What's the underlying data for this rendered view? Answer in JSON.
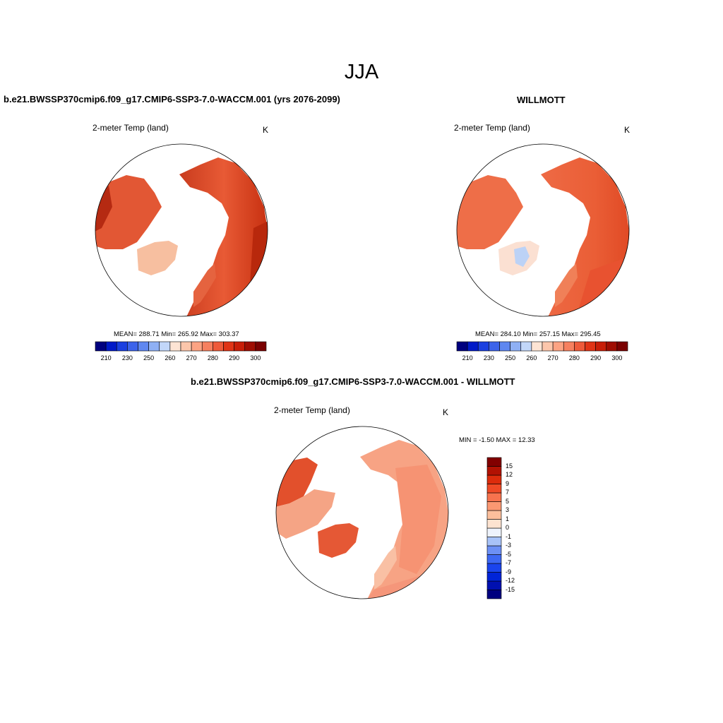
{
  "figure": {
    "title": "JJA"
  },
  "panels": {
    "model": {
      "title": "b.e21.BWSSP370cmip6.f09_g17.CMIP6-SSP3-7.0-WACCM.001 (yrs 2076-2099)",
      "subtitle": "2-meter Temp (land)",
      "units": "K",
      "stats": "MEAN= 288.71  Min= 265.92  Max= 303.37"
    },
    "obs": {
      "title": "WILLMOTT",
      "subtitle": "2-meter Temp (land)",
      "units": "K",
      "stats": "MEAN= 284.10  Min= 257.15  Max= 295.45"
    },
    "diff": {
      "title": "b.e21.BWSSP370cmip6.f09_g17.CMIP6-SSP3-7.0-WACCM.001 - WILLMOTT",
      "subtitle": "2-meter Temp (land)",
      "units": "K",
      "stats": "MIN =  -1.50 MAX =  12.33"
    }
  },
  "colorbars": {
    "abs": {
      "colors": [
        "#00007f",
        "#0019c8",
        "#1a3fe0",
        "#3c63ea",
        "#5f87f0",
        "#8fb0f4",
        "#c2d7f9",
        "#fde4d4",
        "#fcc6ab",
        "#fca383",
        "#f6805f",
        "#ee5a3a",
        "#e03416",
        "#c81e08",
        "#9f0d02",
        "#7a0101"
      ],
      "tick_labels": [
        "210",
        "230",
        "250",
        "260",
        "270",
        "280",
        "290",
        "300"
      ]
    },
    "diff": {
      "colors": [
        "#00007f",
        "#0010b0",
        "#0024d8",
        "#1a44ee",
        "#3d68f3",
        "#6c90f5",
        "#a8c3f8",
        "#eef3fc",
        "#fde3d0",
        "#fcbf9c",
        "#fb9872",
        "#f7734e",
        "#ef4a26",
        "#dc2c0c",
        "#b21203",
        "#820000"
      ],
      "tick_labels": [
        "15",
        "12",
        "9",
        "7",
        "5",
        "3",
        "1",
        "0",
        "-1",
        "-3",
        "-5",
        "-7",
        "-9",
        "-12",
        "-15"
      ]
    }
  }
}
